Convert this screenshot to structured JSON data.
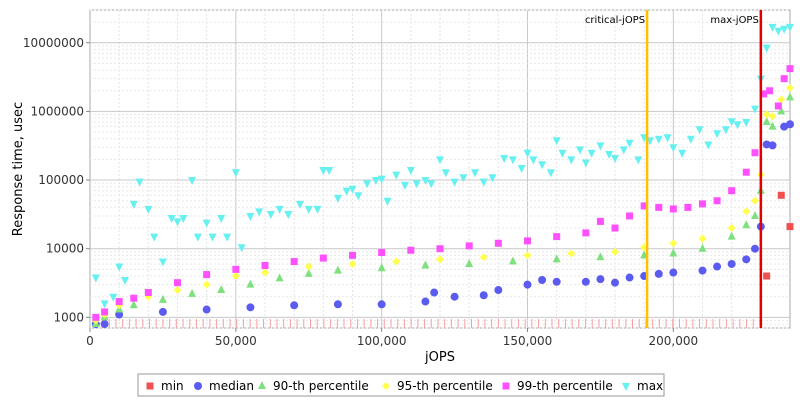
{
  "chart_data": {
    "type": "scatter",
    "xlabel": "jOPS",
    "ylabel": "Response time, usec",
    "xlim": [
      0,
      240000
    ],
    "ylim": [
      700,
      30000000
    ],
    "y_scale": "log",
    "x_ticks": [
      {
        "value": 0,
        "label": "0"
      },
      {
        "value": 50000,
        "label": "50,000"
      },
      {
        "value": 100000,
        "label": "100,000"
      },
      {
        "value": 150000,
        "label": "150,000"
      },
      {
        "value": 200000,
        "label": "200,000"
      }
    ],
    "y_ticks": [
      {
        "value": 1000,
        "label": "1000"
      },
      {
        "value": 10000,
        "label": "10000"
      },
      {
        "value": 100000,
        "label": "100000"
      },
      {
        "value": 1000000,
        "label": "1000000"
      },
      {
        "value": 10000000,
        "label": "10000000"
      }
    ],
    "grid": true,
    "vlines": [
      {
        "name": "critical-jOPS",
        "x": 191000,
        "color": "#ffc000"
      },
      {
        "name": "max-jOPS",
        "x": 230000,
        "color": "#e00000"
      }
    ],
    "series": [
      {
        "name": "min",
        "color": "#f05050",
        "marker": "square",
        "points": [
          [
            232000,
            4000
          ],
          [
            237000,
            60000
          ],
          [
            240000,
            21000
          ]
        ]
      },
      {
        "name": "median",
        "color": "#5b5bef",
        "marker": "circle",
        "points": [
          [
            2000,
            800
          ],
          [
            5000,
            800
          ],
          [
            10000,
            1100
          ],
          [
            25000,
            1200
          ],
          [
            40000,
            1300
          ],
          [
            55000,
            1400
          ],
          [
            70000,
            1500
          ],
          [
            85000,
            1550
          ],
          [
            100000,
            1550
          ],
          [
            115000,
            1700
          ],
          [
            118000,
            2300
          ],
          [
            125000,
            2000
          ],
          [
            135000,
            2100
          ],
          [
            140000,
            2500
          ],
          [
            150000,
            3000
          ],
          [
            155000,
            3500
          ],
          [
            160000,
            3300
          ],
          [
            170000,
            3300
          ],
          [
            175000,
            3600
          ],
          [
            180000,
            3200
          ],
          [
            185000,
            3800
          ],
          [
            190000,
            4000
          ],
          [
            195000,
            4300
          ],
          [
            200000,
            4500
          ],
          [
            210000,
            4800
          ],
          [
            215000,
            5500
          ],
          [
            220000,
            6000
          ],
          [
            225000,
            7000
          ],
          [
            228000,
            10000
          ],
          [
            230000,
            21000
          ],
          [
            232000,
            330000
          ],
          [
            234000,
            320000
          ],
          [
            238000,
            600000
          ],
          [
            240000,
            650000
          ]
        ]
      },
      {
        "name": "90-th percentile",
        "color": "#7fe07f",
        "marker": "triangle-up",
        "points": [
          [
            2000,
            800
          ],
          [
            5000,
            1000
          ],
          [
            10000,
            1300
          ],
          [
            15000,
            1500
          ],
          [
            25000,
            1800
          ],
          [
            35000,
            2200
          ],
          [
            45000,
            2500
          ],
          [
            55000,
            3000
          ],
          [
            65000,
            3700
          ],
          [
            75000,
            4300
          ],
          [
            85000,
            4800
          ],
          [
            100000,
            5200
          ],
          [
            115000,
            5700
          ],
          [
            130000,
            6000
          ],
          [
            145000,
            6500
          ],
          [
            160000,
            7000
          ],
          [
            175000,
            7500
          ],
          [
            190000,
            8000
          ],
          [
            200000,
            8500
          ],
          [
            210000,
            10000
          ],
          [
            220000,
            15000
          ],
          [
            225000,
            22000
          ],
          [
            228000,
            30000
          ],
          [
            230000,
            70000
          ],
          [
            232000,
            700000
          ],
          [
            234000,
            600000
          ],
          [
            237000,
            1000000
          ],
          [
            240000,
            1600000
          ]
        ]
      },
      {
        "name": "95-th percentile",
        "color": "#ffff4d",
        "marker": "diamond",
        "points": [
          [
            2000,
            900
          ],
          [
            5000,
            1100
          ],
          [
            10000,
            1500
          ],
          [
            20000,
            2000
          ],
          [
            30000,
            2500
          ],
          [
            40000,
            3000
          ],
          [
            50000,
            4000
          ],
          [
            60000,
            4500
          ],
          [
            75000,
            5500
          ],
          [
            90000,
            6000
          ],
          [
            105000,
            6500
          ],
          [
            120000,
            7000
          ],
          [
            135000,
            7500
          ],
          [
            150000,
            8000
          ],
          [
            165000,
            8500
          ],
          [
            180000,
            9000
          ],
          [
            190000,
            10500
          ],
          [
            200000,
            12000
          ],
          [
            210000,
            14000
          ],
          [
            220000,
            20000
          ],
          [
            225000,
            35000
          ],
          [
            228000,
            50000
          ],
          [
            230000,
            120000
          ],
          [
            232000,
            900000
          ],
          [
            234000,
            850000
          ],
          [
            237000,
            1500000
          ],
          [
            240000,
            2200000
          ]
        ]
      },
      {
        "name": "99-th percentile",
        "color": "#ff50ff",
        "marker": "square",
        "points": [
          [
            2000,
            1000
          ],
          [
            5000,
            1200
          ],
          [
            10000,
            1700
          ],
          [
            15000,
            1900
          ],
          [
            20000,
            2300
          ],
          [
            30000,
            3200
          ],
          [
            40000,
            4200
          ],
          [
            50000,
            5000
          ],
          [
            60000,
            5700
          ],
          [
            70000,
            6500
          ],
          [
            80000,
            7300
          ],
          [
            90000,
            8000
          ],
          [
            100000,
            8800
          ],
          [
            110000,
            9500
          ],
          [
            120000,
            10000
          ],
          [
            130000,
            11000
          ],
          [
            140000,
            12000
          ],
          [
            150000,
            13000
          ],
          [
            160000,
            15000
          ],
          [
            170000,
            17000
          ],
          [
            175000,
            25000
          ],
          [
            180000,
            20000
          ],
          [
            185000,
            30000
          ],
          [
            190000,
            42000
          ],
          [
            195000,
            40000
          ],
          [
            200000,
            38000
          ],
          [
            205000,
            40000
          ],
          [
            210000,
            45000
          ],
          [
            215000,
            50000
          ],
          [
            220000,
            70000
          ],
          [
            225000,
            130000
          ],
          [
            228000,
            250000
          ],
          [
            231000,
            1800000
          ],
          [
            233000,
            2000000
          ],
          [
            236000,
            1200000
          ],
          [
            238000,
            3000000
          ],
          [
            240000,
            4200000
          ]
        ]
      },
      {
        "name": "max",
        "color": "#66f0f0",
        "marker": "triangle-down",
        "points": [
          [
            2000,
            3800
          ],
          [
            5000,
            1600
          ],
          [
            8000,
            2000
          ],
          [
            10000,
            5500
          ],
          [
            12000,
            3500
          ],
          [
            15000,
            45000
          ],
          [
            17000,
            95000
          ],
          [
            20000,
            38000
          ],
          [
            22000,
            15000
          ],
          [
            25000,
            6500
          ],
          [
            28000,
            28000
          ],
          [
            30000,
            25000
          ],
          [
            32000,
            28000
          ],
          [
            35000,
            100000
          ],
          [
            37000,
            15000
          ],
          [
            40000,
            24000
          ],
          [
            42000,
            15000
          ],
          [
            45000,
            28000
          ],
          [
            47000,
            15000
          ],
          [
            50000,
            130000
          ],
          [
            52000,
            10500
          ],
          [
            55000,
            30000
          ],
          [
            58000,
            35000
          ],
          [
            62000,
            32000
          ],
          [
            65000,
            38000
          ],
          [
            68000,
            32000
          ],
          [
            72000,
            45000
          ],
          [
            75000,
            38000
          ],
          [
            78000,
            38000
          ],
          [
            80000,
            140000
          ],
          [
            82000,
            140000
          ],
          [
            85000,
            55000
          ],
          [
            88000,
            70000
          ],
          [
            90000,
            75000
          ],
          [
            92000,
            60000
          ],
          [
            95000,
            90000
          ],
          [
            98000,
            100000
          ],
          [
            100000,
            105000
          ],
          [
            102000,
            50000
          ],
          [
            105000,
            120000
          ],
          [
            108000,
            85000
          ],
          [
            110000,
            140000
          ],
          [
            112000,
            90000
          ],
          [
            115000,
            100000
          ],
          [
            117000,
            90000
          ],
          [
            120000,
            200000
          ],
          [
            122000,
            130000
          ],
          [
            125000,
            95000
          ],
          [
            128000,
            110000
          ],
          [
            132000,
            130000
          ],
          [
            135000,
            95000
          ],
          [
            138000,
            110000
          ],
          [
            142000,
            210000
          ],
          [
            145000,
            200000
          ],
          [
            148000,
            150000
          ],
          [
            150000,
            250000
          ],
          [
            152000,
            200000
          ],
          [
            155000,
            170000
          ],
          [
            158000,
            130000
          ],
          [
            160000,
            380000
          ],
          [
            162000,
            250000
          ],
          [
            165000,
            200000
          ],
          [
            168000,
            280000
          ],
          [
            170000,
            180000
          ],
          [
            172000,
            250000
          ],
          [
            175000,
            320000
          ],
          [
            178000,
            240000
          ],
          [
            180000,
            210000
          ],
          [
            183000,
            280000
          ],
          [
            185000,
            350000
          ],
          [
            188000,
            200000
          ],
          [
            190000,
            420000
          ],
          [
            192000,
            380000
          ],
          [
            195000,
            400000
          ],
          [
            198000,
            420000
          ],
          [
            200000,
            300000
          ],
          [
            203000,
            250000
          ],
          [
            206000,
            400000
          ],
          [
            209000,
            550000
          ],
          [
            212000,
            330000
          ],
          [
            215000,
            480000
          ],
          [
            218000,
            550000
          ],
          [
            220000,
            720000
          ],
          [
            222000,
            650000
          ],
          [
            225000,
            700000
          ],
          [
            228000,
            1100000
          ],
          [
            230000,
            3000000
          ],
          [
            232000,
            8500000
          ],
          [
            234000,
            17000000
          ],
          [
            236000,
            15000000
          ],
          [
            238000,
            16000000
          ],
          [
            240000,
            17000000
          ]
        ]
      }
    ],
    "legend_position": "bottom",
    "legend": [
      "min",
      "median",
      "90-th percentile",
      "95-th percentile",
      "99-th percentile",
      "max"
    ]
  }
}
